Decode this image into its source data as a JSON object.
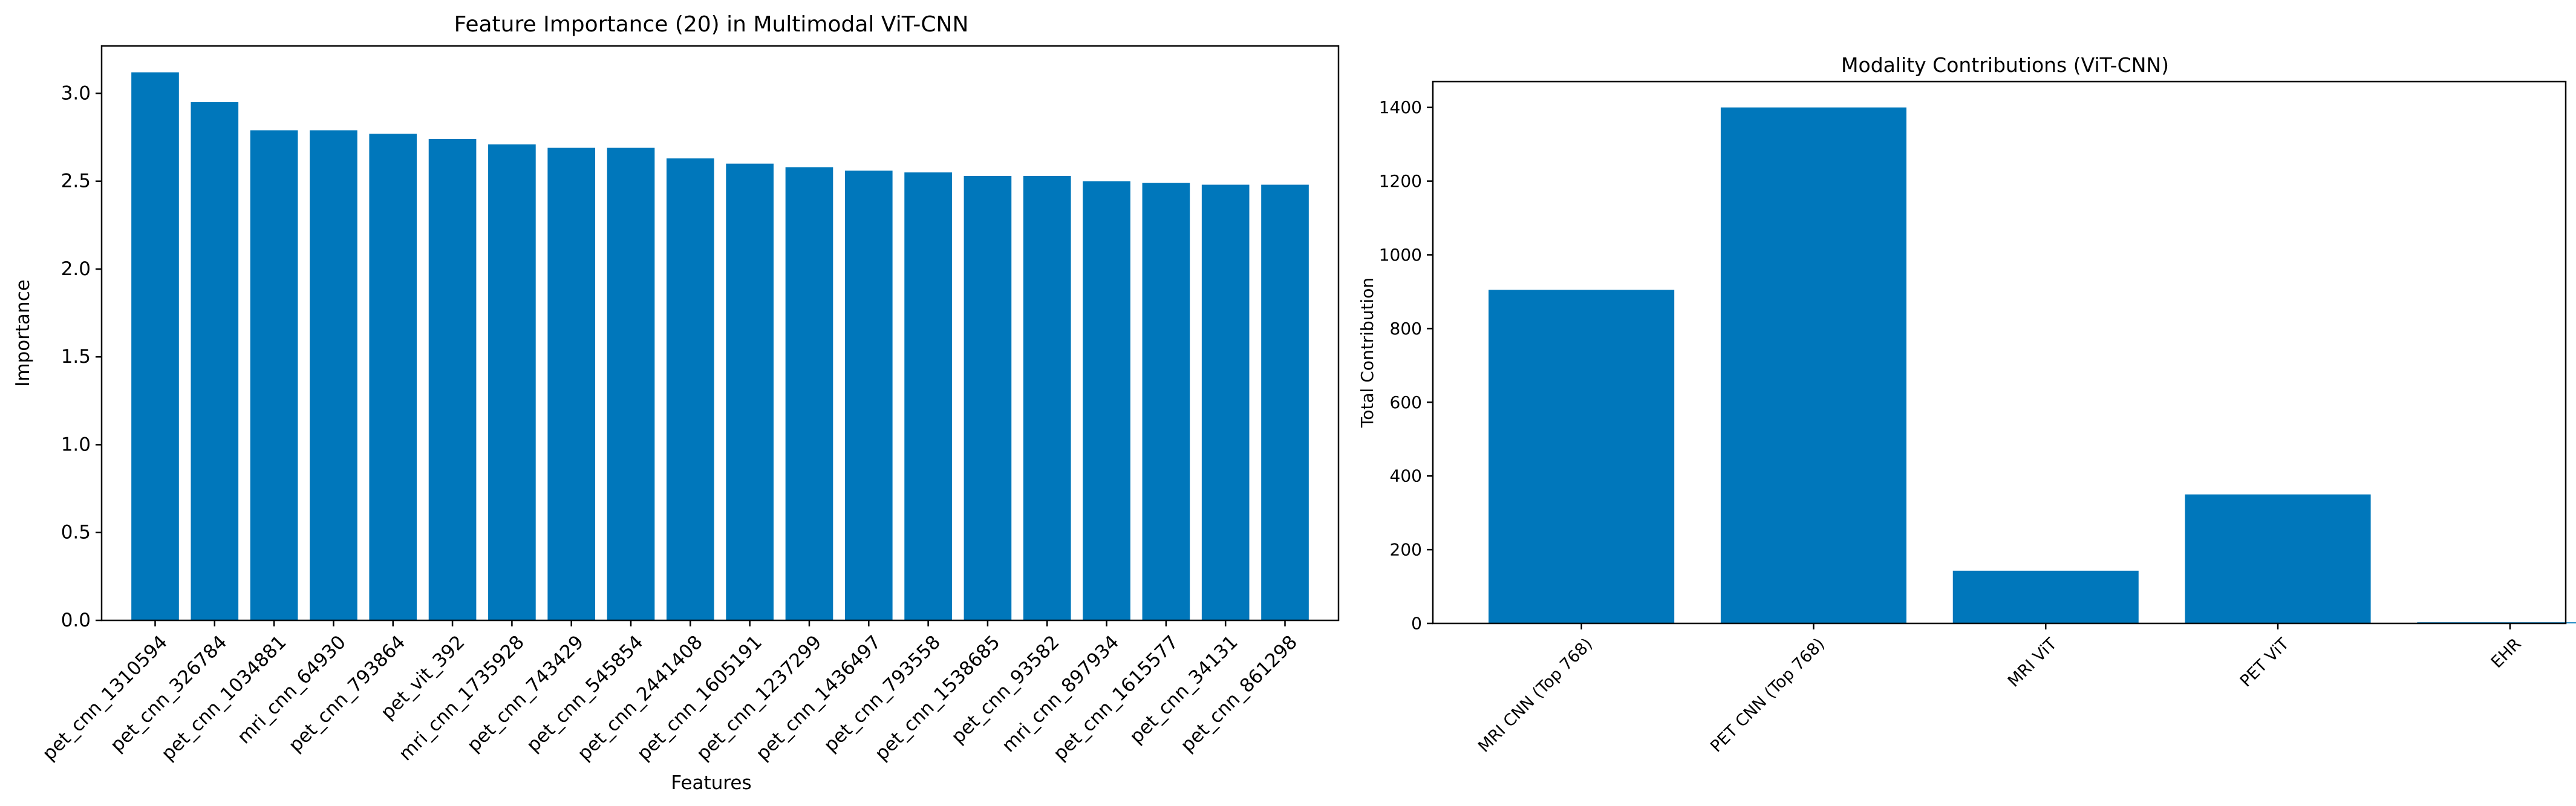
{
  "chart_data": [
    {
      "type": "bar",
      "title": "Feature Importance (20) in Multimodal ViT-CNN",
      "xlabel": "Features",
      "ylabel": "Importance",
      "categories": [
        "pet_cnn_1310594",
        "pet_cnn_326784",
        "pet_cnn_1034881",
        "mri_cnn_64930",
        "pet_cnn_793864",
        "pet_vit_392",
        "mri_cnn_1735928",
        "pet_cnn_743429",
        "pet_cnn_545854",
        "pet_cnn_2441408",
        "pet_cnn_1605191",
        "pet_cnn_1237299",
        "pet_cnn_1436497",
        "pet_cnn_793558",
        "pet_cnn_1538685",
        "pet_cnn_93582",
        "mri_cnn_897934",
        "pet_cnn_1615577",
        "pet_cnn_34131",
        "pet_cnn_861298"
      ],
      "values": [
        3.12,
        2.95,
        2.79,
        2.79,
        2.77,
        2.74,
        2.71,
        2.69,
        2.69,
        2.63,
        2.6,
        2.58,
        2.56,
        2.55,
        2.53,
        2.53,
        2.5,
        2.49,
        2.48,
        2.48
      ],
      "ylim": [
        0,
        3.27
      ],
      "yticks": [
        "0.0",
        "0.5",
        "1.0",
        "1.5",
        "2.0",
        "2.5",
        "3.0"
      ],
      "xlim": [
        -0.9,
        19.9
      ],
      "bar_color": "#0077bb",
      "grid": false,
      "legend": "none"
    },
    {
      "type": "bar",
      "title": "Modality Contributions (ViT-CNN)",
      "xlabel": "",
      "ylabel": "Total Contribution",
      "categories": [
        "MRI CNN (Top 768)",
        "PET CNN (Top 768)",
        "MRI ViT",
        "PET ViT",
        "EHR"
      ],
      "values": [
        905,
        1400,
        143,
        350,
        3
      ],
      "ylim": [
        0,
        1470
      ],
      "yticks": [
        "0",
        "200",
        "400",
        "600",
        "800",
        "1000",
        "1200",
        "1400"
      ],
      "xlim": [
        -0.64,
        4.24
      ],
      "bar_color": "#0077bb",
      "grid": false,
      "legend": "none"
    }
  ]
}
